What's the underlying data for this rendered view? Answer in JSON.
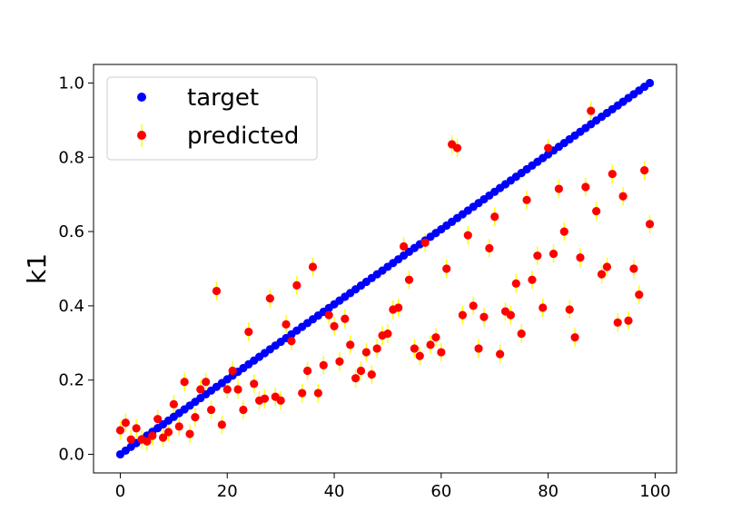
{
  "chart_data": {
    "type": "scatter",
    "title": "",
    "xlabel": "",
    "ylabel": "k1",
    "xlim": [
      -5,
      104
    ],
    "ylim": [
      -0.05,
      1.05
    ],
    "xticks": [
      0,
      20,
      40,
      60,
      80,
      100
    ],
    "yticks": [
      0.0,
      0.2,
      0.4,
      0.6,
      0.8,
      1.0
    ],
    "xtick_labels": [
      "0",
      "20",
      "40",
      "60",
      "80",
      "100"
    ],
    "ytick_labels": [
      "0.0",
      "0.2",
      "0.4",
      "0.6",
      "0.8",
      "1.0"
    ],
    "grid": false,
    "legend": "upper-left",
    "target_series": {
      "name": "target",
      "color": "#0000ff",
      "x_start": 0,
      "x_end": 99,
      "y_start": 0.0,
      "y_end": 1.0,
      "count": 100
    },
    "predicted_series": {
      "name": "predicted",
      "color": "#ff0000",
      "error_color": "#ffff00",
      "error": 0.025,
      "x": [
        0,
        1,
        2,
        3,
        4,
        5,
        6,
        7,
        8,
        9,
        10,
        11,
        12,
        13,
        14,
        15,
        16,
        17,
        18,
        19,
        20,
        21,
        22,
        23,
        24,
        25,
        26,
        27,
        28,
        29,
        30,
        31,
        32,
        33,
        34,
        35,
        36,
        37,
        38,
        39,
        40,
        41,
        42,
        43,
        44,
        45,
        46,
        47,
        48,
        49,
        50,
        51,
        52,
        53,
        54,
        55,
        56,
        57,
        58,
        59,
        60,
        61,
        62,
        63,
        64,
        65,
        66,
        67,
        68,
        69,
        70,
        71,
        72,
        73,
        74,
        75,
        76,
        77,
        78,
        79,
        80,
        81,
        82,
        83,
        84,
        85,
        86,
        87,
        88,
        89,
        90,
        91,
        92,
        93,
        94,
        95,
        96,
        97,
        98,
        99
      ],
      "y": [
        0.065,
        0.085,
        0.04,
        0.07,
        0.04,
        0.035,
        0.05,
        0.095,
        0.045,
        0.06,
        0.135,
        0.075,
        0.195,
        0.055,
        0.1,
        0.175,
        0.195,
        0.12,
        0.44,
        0.08,
        0.175,
        0.225,
        0.175,
        0.12,
        0.33,
        0.19,
        0.145,
        0.15,
        0.42,
        0.155,
        0.145,
        0.35,
        0.305,
        0.455,
        0.165,
        0.225,
        0.505,
        0.165,
        0.24,
        0.375,
        0.345,
        0.25,
        0.365,
        0.295,
        0.205,
        0.225,
        0.275,
        0.215,
        0.285,
        0.32,
        0.325,
        0.39,
        0.395,
        0.56,
        0.47,
        0.285,
        0.265,
        0.57,
        0.295,
        0.315,
        0.275,
        0.5,
        0.835,
        0.825,
        0.375,
        0.59,
        0.4,
        0.285,
        0.37,
        0.555,
        0.64,
        0.27,
        0.385,
        0.375,
        0.46,
        0.325,
        0.685,
        0.47,
        0.535,
        0.395,
        0.825,
        0.54,
        0.715,
        0.6,
        0.39,
        0.315,
        0.53,
        0.72,
        0.925,
        0.655,
        0.485,
        0.505,
        0.755,
        0.355,
        0.695,
        0.36,
        0.5,
        0.43,
        0.765,
        0.62
      ]
    }
  }
}
